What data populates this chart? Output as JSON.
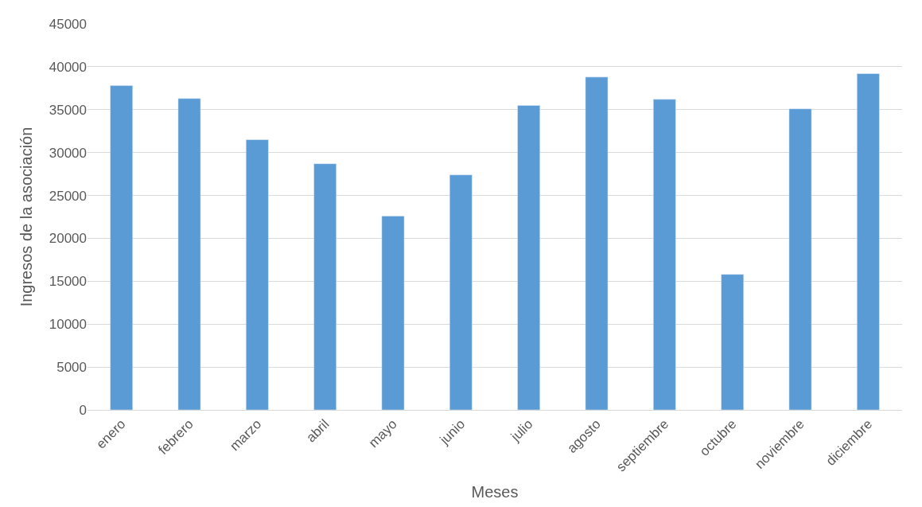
{
  "chart_data": {
    "type": "bar",
    "xlabel": "Meses",
    "ylabel": "Ingresos de la asociación",
    "categories": [
      "enero",
      "febrero",
      "marzo",
      "abril",
      "mayo",
      "junio",
      "julio",
      "agosto",
      "septiembre",
      "octubre",
      "noviembre",
      "diciembre"
    ],
    "values": [
      37800,
      36300,
      31500,
      28700,
      22600,
      27400,
      35500,
      38800,
      36200,
      15800,
      35100,
      39200
    ],
    "color": "#5b9bd5",
    "ylim": [
      0,
      45000
    ],
    "yticks": [
      0,
      5000,
      10000,
      15000,
      20000,
      25000,
      30000,
      35000,
      40000,
      45000
    ],
    "grid": "y"
  }
}
